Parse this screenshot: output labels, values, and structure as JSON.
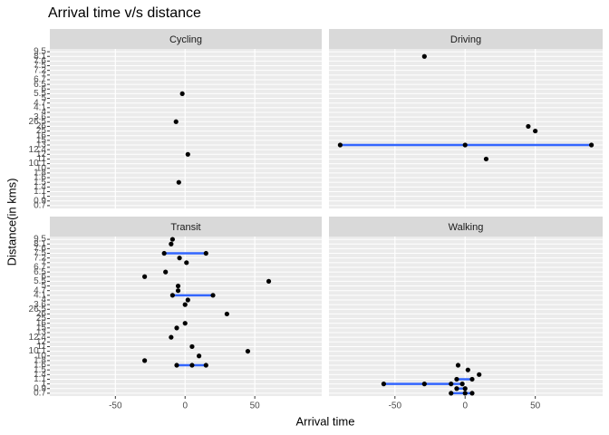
{
  "chart_data": {
    "type": "scatter",
    "title": "Arrival time v/s distance",
    "x_label": "Arrival time",
    "y_label": "Distance(in kms)",
    "categories": [
      "0.7",
      "0.9",
      "1",
      "1.1",
      "1.4",
      "1.5",
      "1.6",
      "1.8",
      "10",
      "10.1",
      "11",
      "12",
      "12.4",
      "13",
      "15",
      "16",
      "25",
      "26",
      "26.5",
      "3.6",
      "4",
      "4.1",
      "4.7",
      "5",
      "5.5",
      "6",
      "6.5",
      "6.7",
      "7",
      "7.2",
      "7.5",
      "7.6",
      "8.1",
      "9.5"
    ],
    "xlim": [
      -97,
      98
    ],
    "xticks": [
      -50,
      0,
      50
    ],
    "grid": true,
    "point_color": "#000000",
    "line_color": "#3366ff",
    "facets": [
      {
        "name": "Cycling",
        "x": [
          -2,
          -6.5,
          2,
          -4.5
        ],
        "y": [
          "5.5",
          "26.5",
          "12",
          "1.5"
        ]
      },
      {
        "name": "Driving",
        "x": [
          -29,
          45,
          50,
          -89,
          0,
          90,
          15
        ],
        "y": [
          "8.1",
          "26",
          "25",
          "13",
          "13",
          "13",
          "11"
        ]
      },
      {
        "name": "Transit",
        "x": [
          -9,
          -10,
          -15,
          15,
          -4,
          1,
          -14,
          -29,
          -5,
          60,
          -5,
          -9,
          20,
          2,
          0,
          30,
          0,
          -6,
          -10,
          5,
          45,
          10,
          -29,
          -6,
          5,
          15
        ],
        "y": [
          "9.5",
          "8.1",
          "7.5",
          "7.5",
          "7.2",
          "7",
          "6.5",
          "6",
          "5",
          "5.5",
          "4.7",
          "4.1",
          "4.1",
          "4",
          "3.6",
          "26",
          "16",
          "15",
          "12.4",
          "11",
          "10.1",
          "10",
          "1.8",
          "1.6",
          "1.6",
          "1.6"
        ]
      },
      {
        "name": "Walking",
        "x": [
          -5,
          2,
          10,
          -6,
          5,
          -58,
          -29,
          -10,
          -2,
          0,
          -6,
          -10,
          5,
          0
        ],
        "y": [
          "1.6",
          "1.5",
          "1.4",
          "1.1",
          "1.1",
          "1",
          "1",
          "1",
          "1",
          "0.9",
          "0.9",
          "0.7",
          "0.7",
          "0.7"
        ]
      }
    ]
  }
}
